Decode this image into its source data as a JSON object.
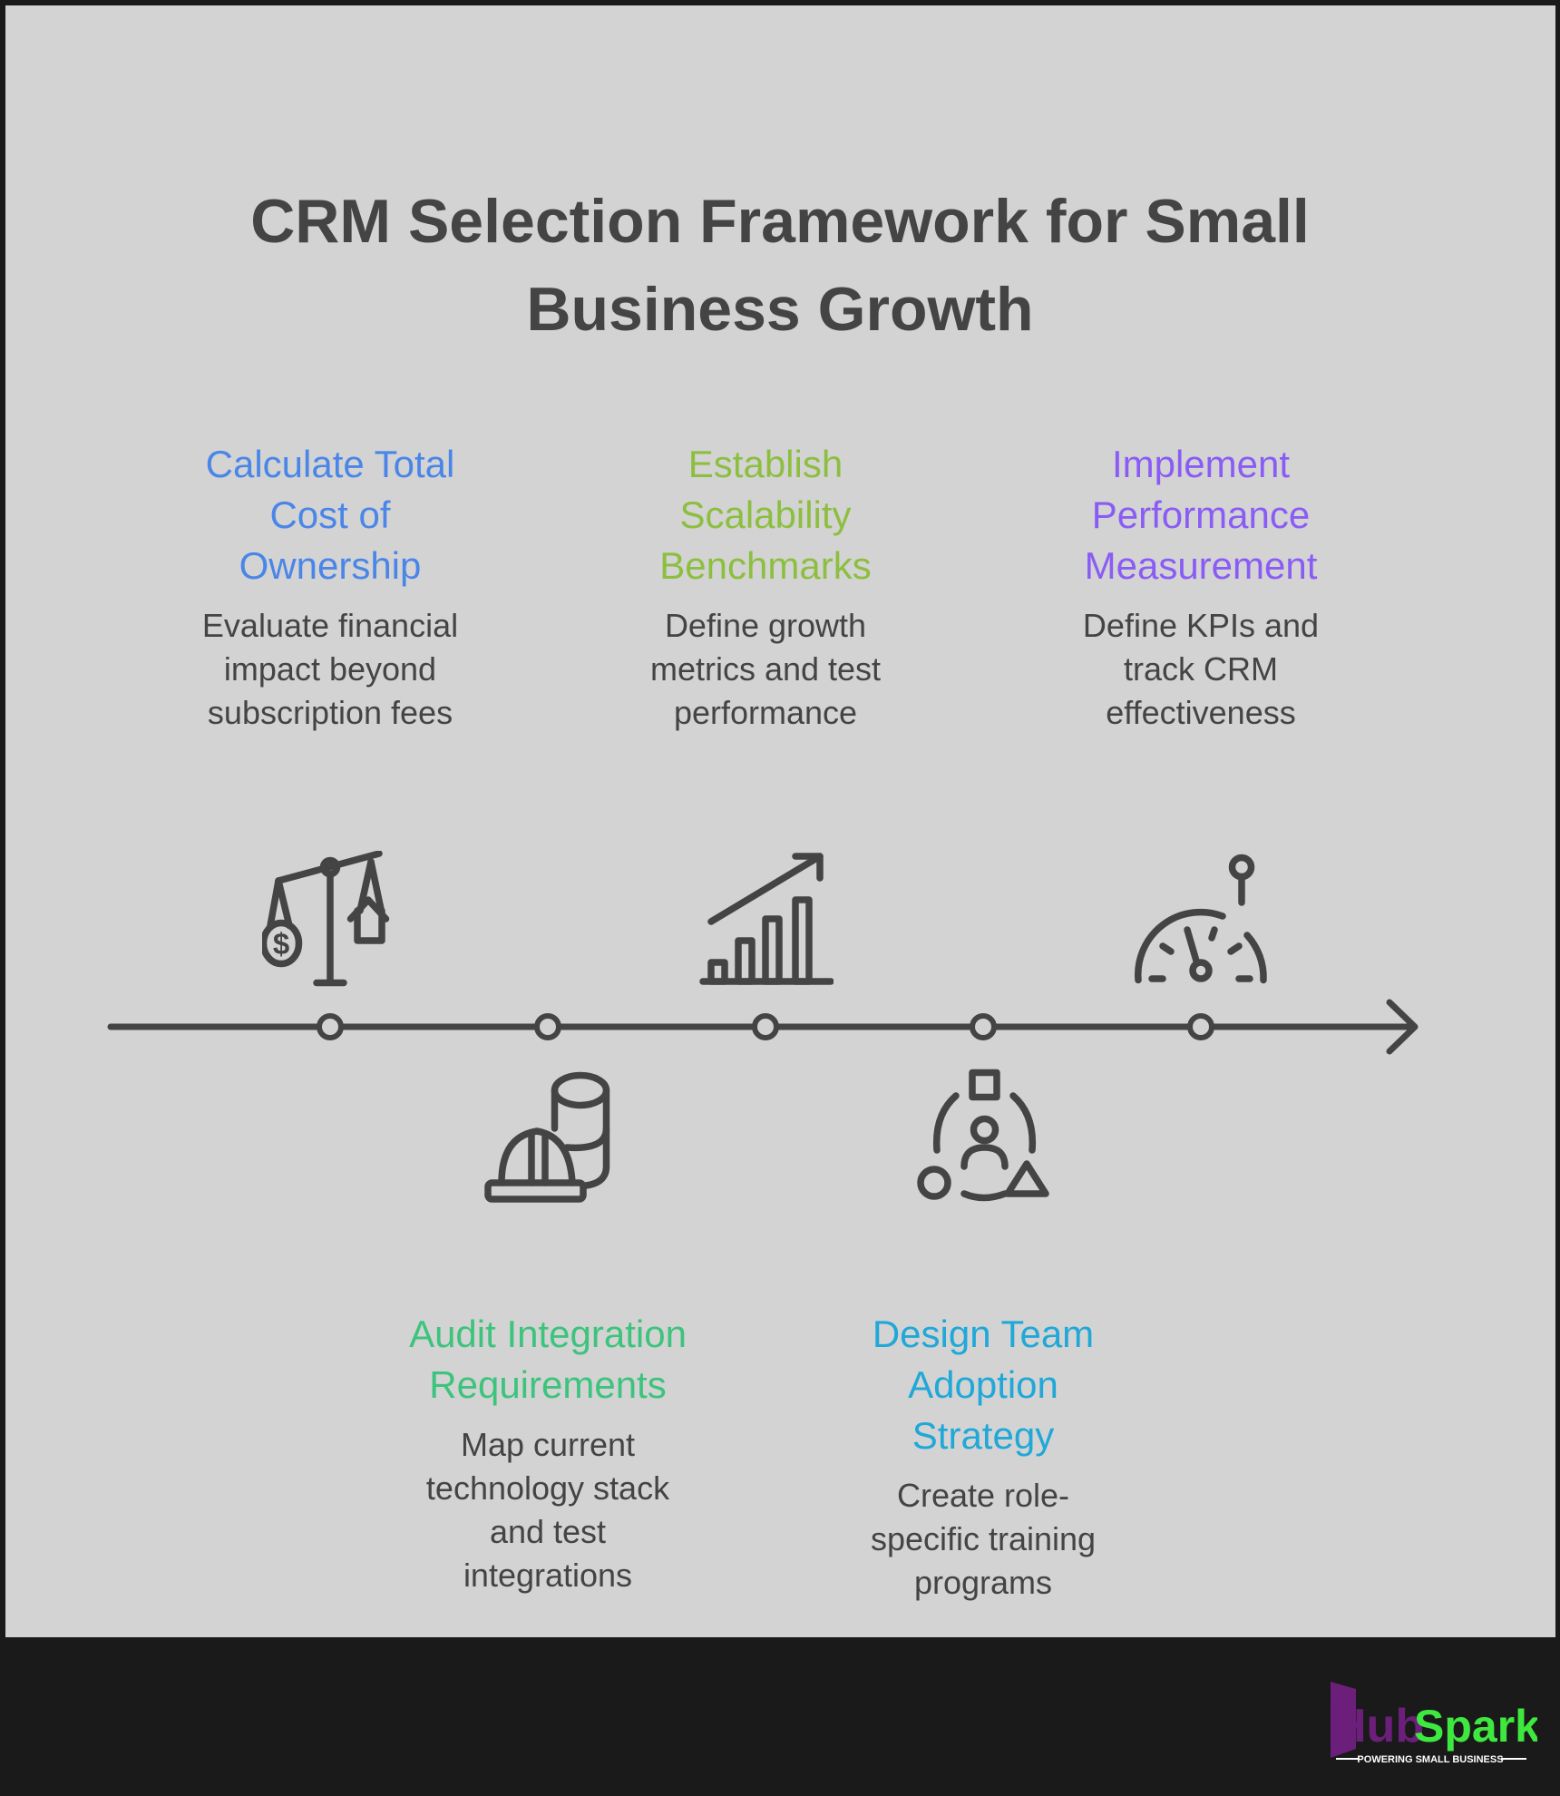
{
  "title": "CRM Selection Framework for Small\nBusiness Growth",
  "steps": [
    {
      "heading": "Calculate Total\nCost of\nOwnership",
      "description": "Evaluate financial\nimpact beyond\nsubscription fees",
      "color": "#4a86e8",
      "icon": "scale-dollar-house-icon"
    },
    {
      "heading": "Audit Integration\nRequirements",
      "description": "Map current\ntechnology stack\nand test\nintegrations",
      "color": "#3cc47c",
      "icon": "hardhat-database-icon"
    },
    {
      "heading": "Establish\nScalability\nBenchmarks",
      "description": "Define growth\nmetrics and test\nperformance",
      "color": "#8cbf3f",
      "icon": "growth-chart-icon"
    },
    {
      "heading": "Design Team\nAdoption\nStrategy",
      "description": "Create role-\nspecific training\nprograms",
      "color": "#1fa8d8",
      "icon": "team-roles-icon"
    },
    {
      "heading": "Implement\nPerformance\nMeasurement",
      "description": "Define KPIs and\ntrack CRM\neffectiveness",
      "color": "#8a5cf5",
      "icon": "gauge-icon"
    }
  ],
  "footer": {
    "logo_text_left": "Hub",
    "logo_text_right": "Spark",
    "tagline": "POWERING SMALL BUSINESS",
    "logo_colors": {
      "left": "#6b1f7a",
      "right": "#3ee83e"
    }
  }
}
